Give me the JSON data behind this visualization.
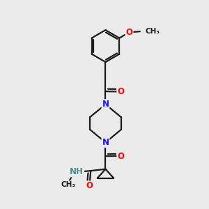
{
  "bg_color": "#ebebeb",
  "bond_color": "#1a1a1a",
  "bond_width": 1.6,
  "N_color": "#1414ff",
  "O_color": "#ff0000",
  "NH_color": "#4a9090",
  "font_size_atom": 8.5,
  "font_size_small": 7.5,
  "figsize": [
    3.0,
    3.0
  ],
  "dpi": 100,
  "xlim": [
    0,
    10
  ],
  "ylim": [
    0,
    10
  ]
}
